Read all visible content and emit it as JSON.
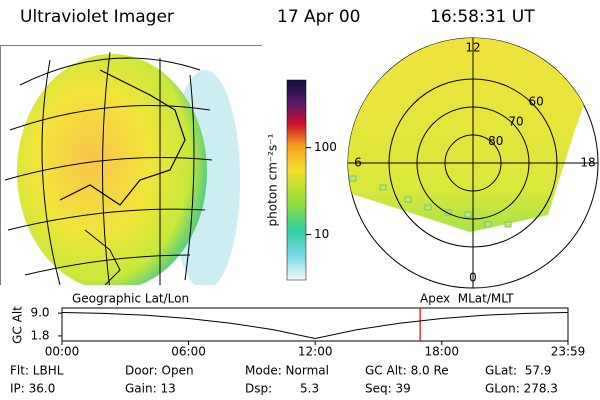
{
  "header": {
    "title": "Ultraviolet Imager",
    "date": "17 Apr 00",
    "time": "16:58:31 UT"
  },
  "colorbar": {
    "label": "photon cm⁻²s⁻¹",
    "log_scale": true,
    "lim": [
      3,
      600
    ],
    "ticks": [
      10,
      100
    ]
  },
  "polar": {
    "lat_rings": [
      60,
      70,
      80
    ],
    "mlt_labels": [
      0,
      6,
      12,
      18
    ]
  },
  "altitude": {
    "ylabel": "GC Alt",
    "left_title": "Geographic Lat/Lon",
    "right_title": "Apex  MLat/MLT",
    "x": [
      0,
      2,
      4,
      6,
      8,
      10,
      12,
      14,
      16,
      18,
      20,
      22,
      23.983
    ],
    "values": [
      9.2,
      8.9,
      8.3,
      7.3,
      5.8,
      3.8,
      1.0,
      3.8,
      5.8,
      7.3,
      8.3,
      8.9,
      9.2
    ],
    "color": "#000000",
    "xlim": [
      0,
      23.983
    ],
    "ylim": [
      0.2,
      10.6
    ],
    "xticks": [
      {
        "value": 0,
        "label": "00:00"
      },
      {
        "value": 6,
        "label": "06:00"
      },
      {
        "value": 12,
        "label": "12:00"
      },
      {
        "value": 18,
        "label": "18:00"
      },
      {
        "value": 23.983,
        "label": "23:59"
      }
    ],
    "yticks": [
      {
        "value": 9,
        "label": "9.0"
      },
      {
        "value": 1.8,
        "label": "1.8"
      }
    ],
    "current_time": 16.975,
    "current_color": "#e00000"
  },
  "footer": {
    "rows": [
      [
        "Flt: LBHL",
        "Door: Open",
        "Mode: Normal",
        "GC Alt: 8.0 Re",
        "GLat:  57.9"
      ],
      [
        "IP: 36.0",
        "Gain: 13",
        "Dsp:",
        "5.3",
        "Seq: 39",
        "GLon: 278.3"
      ]
    ]
  }
}
